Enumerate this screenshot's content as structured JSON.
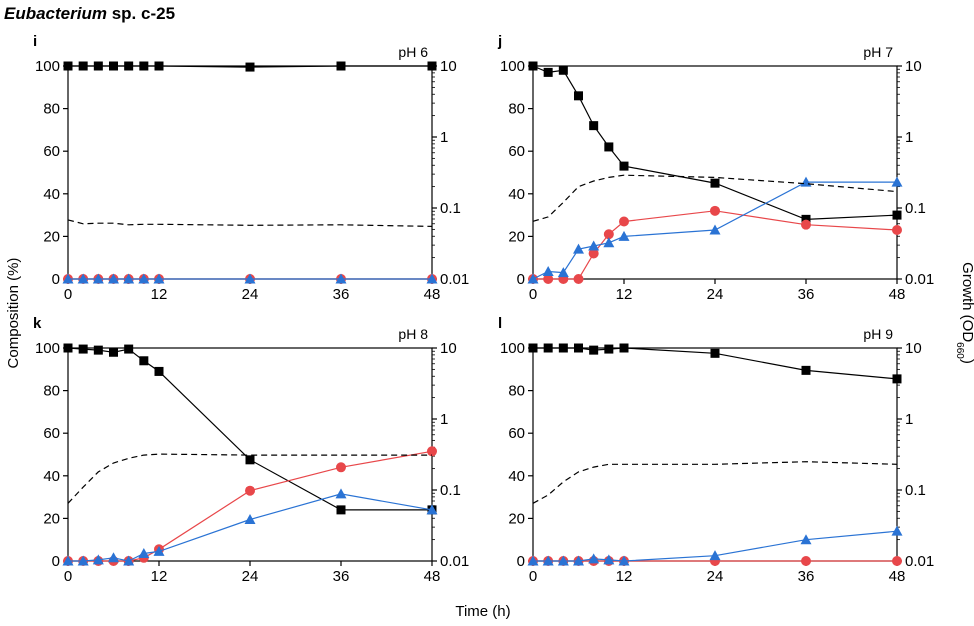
{
  "figure": {
    "title_main": "Eubacterium",
    "title_rest": " sp. c-25",
    "y_left_label": "Composition (%)",
    "y_right_label_main": "Growth (OD",
    "y_right_label_sub": "660",
    "y_right_label_end": ")",
    "x_label": "Time (h)"
  },
  "chart_data": [
    {
      "type": "line",
      "panel": "i",
      "condition": "pH 6",
      "x_ticks": [
        0,
        12,
        24,
        36,
        48
      ],
      "y_left_ticks": [
        0,
        20,
        40,
        60,
        80,
        100
      ],
      "y_right_ticks": [
        "0.01",
        "0.1",
        "1",
        "10"
      ],
      "xlim": [
        0,
        48
      ],
      "ylim": [
        0,
        100
      ],
      "y2lim": [
        0.01,
        10
      ],
      "y2_scale": "log",
      "series": [
        {
          "style": "black-square",
          "color": "#000000",
          "axis": "left",
          "x": [
            0,
            2,
            4,
            6,
            8,
            10,
            12,
            24,
            36,
            48
          ],
          "y": [
            100,
            100,
            100,
            100,
            100,
            100,
            100,
            99.5,
            100,
            100
          ]
        },
        {
          "style": "red-circle",
          "color": "#e8474a",
          "axis": "left",
          "x": [
            0,
            2,
            4,
            6,
            8,
            10,
            12,
            24,
            36,
            48
          ],
          "y": [
            0,
            0,
            0,
            0,
            0,
            0,
            0,
            0,
            0,
            0
          ]
        },
        {
          "style": "blue-triangle",
          "color": "#2a73d4",
          "axis": "left",
          "x": [
            0,
            2,
            4,
            6,
            8,
            10,
            12,
            24,
            36,
            48
          ],
          "y": [
            0,
            0,
            0,
            0,
            0,
            0,
            0,
            0,
            0,
            0
          ]
        },
        {
          "style": "dashed-growth",
          "color": "#000000",
          "axis": "right",
          "x": [
            0,
            2,
            4,
            6,
            8,
            10,
            12,
            24,
            36,
            48
          ],
          "y": [
            0.068,
            0.06,
            0.061,
            0.061,
            0.058,
            0.059,
            0.059,
            0.057,
            0.058,
            0.055
          ]
        }
      ]
    },
    {
      "type": "line",
      "panel": "j",
      "condition": "pH 7",
      "x_ticks": [
        0,
        12,
        24,
        36,
        48
      ],
      "y_left_ticks": [
        0,
        20,
        40,
        60,
        80,
        100
      ],
      "y_right_ticks": [
        "0.01",
        "0.1",
        "1",
        "10"
      ],
      "xlim": [
        0,
        48
      ],
      "ylim": [
        0,
        100
      ],
      "y2lim": [
        0.01,
        10
      ],
      "y2_scale": "log",
      "series": [
        {
          "style": "black-square",
          "color": "#000000",
          "axis": "left",
          "x": [
            0,
            2,
            4,
            6,
            8,
            10,
            12,
            24,
            36,
            48
          ],
          "y": [
            100,
            97,
            98,
            86,
            72,
            62,
            53,
            45,
            28,
            30
          ]
        },
        {
          "style": "red-circle",
          "color": "#e8474a",
          "axis": "left",
          "x": [
            0,
            2,
            4,
            6,
            8,
            10,
            12,
            24,
            36,
            48
          ],
          "y": [
            0,
            0,
            0,
            0,
            12,
            21,
            27,
            32,
            25.5,
            23
          ]
        },
        {
          "style": "blue-triangle",
          "color": "#2a73d4",
          "axis": "left",
          "x": [
            0,
            2,
            4,
            6,
            8,
            10,
            12,
            24,
            36,
            48
          ],
          "y": [
            0,
            3.5,
            3,
            14,
            15.5,
            17,
            20,
            23,
            45.5,
            45.5
          ]
        },
        {
          "style": "dashed-growth",
          "color": "#000000",
          "axis": "right",
          "x": [
            0,
            2,
            4,
            6,
            8,
            10,
            12,
            24,
            36,
            48
          ],
          "y": [
            0.065,
            0.075,
            0.12,
            0.2,
            0.24,
            0.27,
            0.29,
            0.27,
            0.22,
            0.17
          ]
        }
      ]
    },
    {
      "type": "line",
      "panel": "k",
      "condition": "pH 8",
      "x_ticks": [
        0,
        12,
        24,
        36,
        48
      ],
      "y_left_ticks": [
        0,
        20,
        40,
        60,
        80,
        100
      ],
      "y_right_ticks": [
        "0.01",
        "0.1",
        "1",
        "10"
      ],
      "xlim": [
        0,
        48
      ],
      "ylim": [
        0,
        100
      ],
      "y2lim": [
        0.01,
        10
      ],
      "y2_scale": "log",
      "series": [
        {
          "style": "black-square",
          "color": "#000000",
          "axis": "left",
          "x": [
            0,
            2,
            4,
            6,
            8,
            10,
            12,
            24,
            36,
            48
          ],
          "y": [
            100,
            99.5,
            99,
            98,
            99.5,
            94,
            89,
            47.5,
            24,
            24
          ]
        },
        {
          "style": "red-circle",
          "color": "#e8474a",
          "axis": "left",
          "x": [
            0,
            2,
            4,
            6,
            8,
            10,
            12,
            24,
            36,
            48
          ],
          "y": [
            0,
            0,
            0,
            0,
            0,
            1.5,
            5.5,
            33,
            44,
            51.5
          ]
        },
        {
          "style": "blue-triangle",
          "color": "#2a73d4",
          "axis": "left",
          "x": [
            0,
            2,
            4,
            6,
            8,
            10,
            12,
            24,
            36,
            48
          ],
          "y": [
            0,
            0,
            0.5,
            1.5,
            0,
            3.5,
            4.5,
            19.5,
            31.5,
            24
          ]
        },
        {
          "style": "dashed-growth",
          "color": "#000000",
          "axis": "right",
          "x": [
            0,
            2,
            4,
            6,
            8,
            10,
            12,
            24,
            36,
            48
          ],
          "y": [
            0.065,
            0.11,
            0.18,
            0.24,
            0.28,
            0.31,
            0.32,
            0.31,
            0.31,
            0.31
          ]
        }
      ]
    },
    {
      "type": "line",
      "panel": "l",
      "condition": "pH 9",
      "x_ticks": [
        0,
        12,
        24,
        36,
        48
      ],
      "y_left_ticks": [
        0,
        20,
        40,
        60,
        80,
        100
      ],
      "y_right_ticks": [
        "0.01",
        "0.1",
        "1",
        "10"
      ],
      "xlim": [
        0,
        48
      ],
      "ylim": [
        0,
        100
      ],
      "y2lim": [
        0.01,
        10
      ],
      "y2_scale": "log",
      "series": [
        {
          "style": "black-square",
          "color": "#000000",
          "axis": "left",
          "x": [
            0,
            2,
            4,
            6,
            8,
            10,
            12,
            24,
            36,
            48
          ],
          "y": [
            100,
            100,
            100,
            100,
            99,
            99.5,
            100,
            97.5,
            89.5,
            85.5
          ]
        },
        {
          "style": "red-circle",
          "color": "#e8474a",
          "axis": "left",
          "x": [
            0,
            2,
            4,
            6,
            8,
            10,
            12,
            24,
            36,
            48
          ],
          "y": [
            0,
            0,
            0,
            0,
            0,
            0,
            0,
            0,
            0,
            0
          ]
        },
        {
          "style": "blue-triangle",
          "color": "#2a73d4",
          "axis": "left",
          "x": [
            0,
            2,
            4,
            6,
            8,
            10,
            12,
            24,
            36,
            48
          ],
          "y": [
            0,
            0,
            0,
            0,
            1,
            0.5,
            0,
            2.5,
            10,
            14
          ]
        },
        {
          "style": "dashed-growth",
          "color": "#000000",
          "axis": "right",
          "x": [
            0,
            2,
            4,
            6,
            8,
            10,
            12,
            24,
            36,
            48
          ],
          "y": [
            0.065,
            0.085,
            0.13,
            0.18,
            0.21,
            0.23,
            0.23,
            0.23,
            0.25,
            0.23
          ]
        }
      ]
    }
  ]
}
